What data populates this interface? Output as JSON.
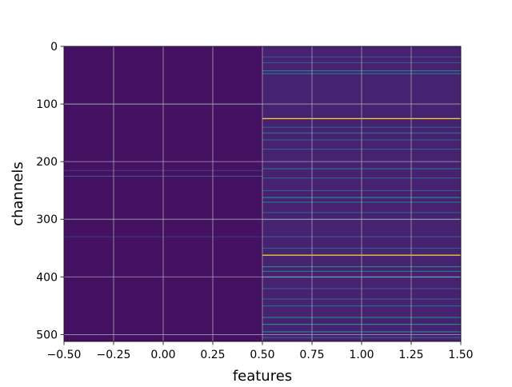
{
  "chart_data": {
    "type": "heatmap",
    "title": "",
    "xlabel": "features",
    "ylabel": "channels",
    "xlim": [
      -0.5,
      1.5
    ],
    "ylim": [
      512,
      0
    ],
    "x_categories": [
      0,
      1
    ],
    "x_ticks": [
      -0.5,
      -0.25,
      0.0,
      0.25,
      0.5,
      0.75,
      1.0,
      1.25,
      1.5
    ],
    "x_tick_labels": [
      "−0.50",
      "−0.25",
      "0.00",
      "0.25",
      "0.50",
      "0.75",
      "1.00",
      "1.25",
      "1.50"
    ],
    "y_ticks": [
      0,
      100,
      200,
      300,
      400,
      500
    ],
    "y_tick_labels": [
      "0",
      "100",
      "200",
      "300",
      "400",
      "500"
    ],
    "n_channels": 512,
    "colormap": "viridis",
    "grid": true,
    "colorbar": false,
    "background_color": "#440154",
    "columns": [
      {
        "feature": 0,
        "base_value": 0.05,
        "highlight_rows": [
          {
            "channel": 100,
            "value": 0.2
          },
          {
            "channel": 215,
            "value": 0.18
          },
          {
            "channel": 225,
            "value": 0.25
          },
          {
            "channel": 330,
            "value": 0.15
          },
          {
            "channel": 500,
            "value": 0.15
          }
        ]
      },
      {
        "feature": 1,
        "base_value": 0.1,
        "highlight_rows": [
          {
            "channel": 18,
            "value": 0.25
          },
          {
            "channel": 28,
            "value": 0.3
          },
          {
            "channel": 42,
            "value": 0.45
          },
          {
            "channel": 47,
            "value": 0.4
          },
          {
            "channel": 125,
            "value": 1.0
          },
          {
            "channel": 140,
            "value": 0.3
          },
          {
            "channel": 150,
            "value": 0.35
          },
          {
            "channel": 162,
            "value": 0.3
          },
          {
            "channel": 178,
            "value": 0.3
          },
          {
            "channel": 212,
            "value": 0.35
          },
          {
            "channel": 228,
            "value": 0.3
          },
          {
            "channel": 250,
            "value": 0.3
          },
          {
            "channel": 262,
            "value": 0.5
          },
          {
            "channel": 270,
            "value": 0.4
          },
          {
            "channel": 288,
            "value": 0.3
          },
          {
            "channel": 300,
            "value": 0.35
          },
          {
            "channel": 330,
            "value": 0.3
          },
          {
            "channel": 350,
            "value": 0.3
          },
          {
            "channel": 362,
            "value": 1.0
          },
          {
            "channel": 382,
            "value": 0.45
          },
          {
            "channel": 390,
            "value": 0.4
          },
          {
            "channel": 400,
            "value": 0.45
          },
          {
            "channel": 420,
            "value": 0.3
          },
          {
            "channel": 438,
            "value": 0.3
          },
          {
            "channel": 450,
            "value": 0.35
          },
          {
            "channel": 470,
            "value": 0.45
          },
          {
            "channel": 482,
            "value": 0.5
          },
          {
            "channel": 495,
            "value": 0.45
          },
          {
            "channel": 505,
            "value": 0.3
          }
        ]
      }
    ]
  }
}
